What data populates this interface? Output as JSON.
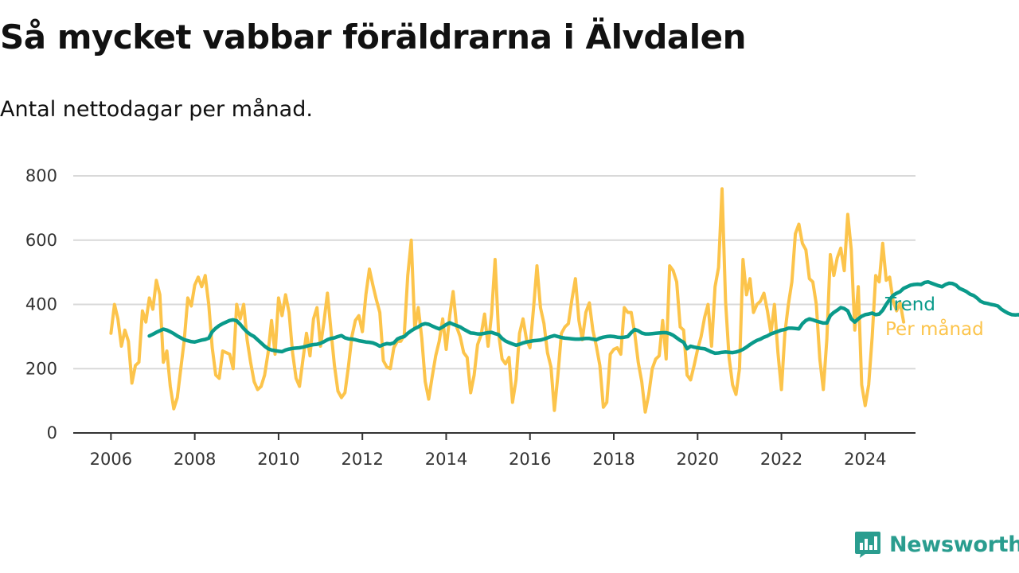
{
  "header": {
    "title": "Så mycket vabbar föräldrarna i Älvdalen",
    "subtitle": "Antal nettodagar per månad."
  },
  "brand": {
    "name": "Newsworthy",
    "icon": "newsworthy-logo-icon",
    "color": "#2a9d8f"
  },
  "chart_data": {
    "type": "line",
    "x_axis": {
      "min": 2005.1,
      "max": 2025.2,
      "ticks": [
        2006,
        2008,
        2010,
        2012,
        2014,
        2016,
        2018,
        2020,
        2022,
        2024
      ]
    },
    "y_axis": {
      "min": 0,
      "max": 800,
      "ticks": [
        0,
        200,
        400,
        600,
        800
      ]
    },
    "grid": "horizontal",
    "legend": "right-inline",
    "series": [
      {
        "name": "Per månad",
        "color": "#fcc44b",
        "start": "2006-01",
        "frequency": "monthly",
        "values": [
          310,
          400,
          355,
          270,
          320,
          285,
          155,
          210,
          220,
          380,
          345,
          420,
          385,
          475,
          430,
          220,
          255,
          145,
          75,
          110,
          200,
          290,
          420,
          395,
          460,
          485,
          455,
          490,
          400,
          265,
          180,
          170,
          255,
          250,
          245,
          200,
          400,
          355,
          400,
          290,
          220,
          160,
          135,
          145,
          180,
          250,
          350,
          245,
          420,
          365,
          430,
          375,
          250,
          170,
          145,
          230,
          310,
          240,
          355,
          390,
          270,
          345,
          435,
          320,
          210,
          130,
          110,
          125,
          205,
          300,
          350,
          365,
          315,
          430,
          510,
          460,
          415,
          375,
          225,
          205,
          200,
          265,
          285,
          285,
          305,
          490,
          600,
          325,
          390,
          295,
          160,
          105,
          175,
          240,
          285,
          355,
          260,
          365,
          440,
          330,
          300,
          250,
          235,
          125,
          180,
          275,
          305,
          370,
          270,
          370,
          540,
          310,
          230,
          215,
          235,
          95,
          165,
          310,
          355,
          290,
          265,
          385,
          520,
          390,
          340,
          250,
          205,
          70,
          180,
          310,
          330,
          340,
          415,
          480,
          350,
          290,
          375,
          405,
          320,
          270,
          210,
          80,
          95,
          245,
          260,
          265,
          245,
          390,
          375,
          375,
          310,
          220,
          160,
          65,
          120,
          200,
          230,
          240,
          350,
          230,
          520,
          505,
          470,
          330,
          320,
          180,
          165,
          210,
          260,
          300,
          360,
          400,
          270,
          455,
          515,
          760,
          410,
          235,
          150,
          120,
          200,
          540,
          430,
          480,
          375,
          400,
          410,
          435,
          380,
          310,
          400,
          250,
          135,
          310,
          400,
          470,
          620,
          650,
          590,
          570,
          480,
          470,
          400,
          230,
          135,
          290,
          555,
          490,
          545,
          575,
          505,
          680,
          570,
          320,
          455,
          150,
          85,
          150,
          300,
          490,
          470,
          590,
          475,
          485,
          410,
          380,
          405,
          345
        ]
      },
      {
        "name": "Trend",
        "color": "#0a9a8a",
        "start": "2006-12",
        "frequency": "monthly",
        "values": [
          302,
          307,
          313,
          318,
          323,
          320,
          315,
          309,
          302,
          296,
          290,
          287,
          284,
          283,
          286,
          289,
          291,
          295,
          315,
          326,
          334,
          340,
          345,
          350,
          352,
          349,
          338,
          325,
          314,
          306,
          300,
          290,
          280,
          270,
          262,
          258,
          256,
          254,
          253,
          258,
          261,
          263,
          264,
          265,
          267,
          270,
          273,
          275,
          276,
          279,
          284,
          290,
          294,
          296,
          300,
          303,
          296,
          293,
          292,
          290,
          287,
          285,
          283,
          282,
          280,
          276,
          270,
          275,
          278,
          277,
          280,
          292,
          297,
          300,
          310,
          318,
          325,
          330,
          337,
          340,
          338,
          333,
          328,
          324,
          330,
          337,
          343,
          338,
          334,
          330,
          323,
          317,
          311,
          310,
          308,
          308,
          310,
          312,
          313,
          309,
          306,
          294,
          286,
          281,
          277,
          273,
          276,
          280,
          283,
          285,
          287,
          288,
          289,
          292,
          296,
          300,
          303,
          300,
          297,
          295,
          294,
          293,
          292,
          292,
          293,
          294,
          294,
          292,
          290,
          295,
          298,
          300,
          301,
          300,
          298,
          297,
          298,
          300,
          312,
          322,
          318,
          311,
          308,
          308,
          309,
          310,
          311,
          312,
          312,
          309,
          304,
          296,
          288,
          282,
          262,
          270,
          267,
          265,
          263,
          262,
          257,
          252,
          248,
          249,
          251,
          252,
          251,
          250,
          252,
          255,
          260,
          267,
          275,
          282,
          288,
          292,
          298,
          302,
          308,
          312,
          316,
          320,
          322,
          326,
          326,
          325,
          324,
          340,
          350,
          355,
          352,
          348,
          345,
          342,
          342,
          365,
          375,
          382,
          390,
          387,
          380,
          355,
          345,
          355,
          363,
          368,
          370,
          373,
          368,
          370,
          382,
          400,
          415,
          428,
          435,
          440,
          450,
          455,
          460,
          462,
          463,
          462,
          468,
          470,
          466,
          462,
          458,
          455,
          462,
          466,
          465,
          460,
          450,
          445,
          440,
          432,
          428,
          420,
          410,
          405,
          403,
          400,
          398,
          395,
          385,
          378,
          372,
          368,
          367,
          368,
          362
        ]
      }
    ]
  }
}
